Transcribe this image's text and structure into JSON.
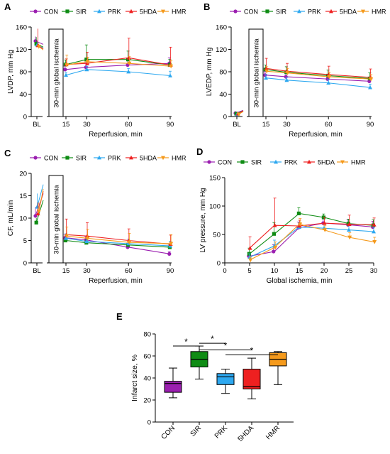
{
  "colors": {
    "CON": "#9b1fb0",
    "SIR": "#0f8c14",
    "PRK": "#2da8f0",
    "5HDA": "#ee2020",
    "HMR": "#f59a1c"
  },
  "groups": [
    "CON",
    "SIR",
    "PRK",
    "5HDA",
    "HMR"
  ],
  "ischemia_label": "30-min global ischemia",
  "chart_data": [
    {
      "panel": "A",
      "type": "line",
      "ylabel": "LVDP, mm Hg",
      "xlabel": "Reperfusion, min",
      "ylim": [
        0,
        160
      ],
      "yticks": [
        0,
        40,
        80,
        120,
        160
      ],
      "xtick_labels": [
        "BL",
        "15",
        "30",
        "60",
        "90"
      ],
      "x": [
        15,
        30,
        60,
        90
      ],
      "legend": "top",
      "series": [
        {
          "name": "CON",
          "bl": 135,
          "bl_err": 8,
          "values": [
            84,
            88,
            92,
            95
          ],
          "errors": [
            6,
            8,
            10,
            10
          ]
        },
        {
          "name": "SIR",
          "bl": 130,
          "bl_err": 12,
          "values": [
            93,
            102,
            102,
            92
          ],
          "errors": [
            8,
            26,
            15,
            10
          ]
        },
        {
          "name": "PRK",
          "bl": 128,
          "bl_err": 5,
          "values": [
            74,
            84,
            80,
            73
          ],
          "errors": [
            5,
            6,
            6,
            8
          ]
        },
        {
          "name": "5HDA",
          "bl": 127,
          "bl_err": 30,
          "values": [
            93,
            95,
            105,
            92
          ],
          "errors": [
            10,
            20,
            35,
            32
          ]
        },
        {
          "name": "HMR",
          "bl": 125,
          "bl_err": 5,
          "values": [
            92,
            98,
            95,
            90
          ],
          "errors": [
            18,
            8,
            12,
            10
          ]
        }
      ]
    },
    {
      "panel": "B",
      "type": "line",
      "ylabel": "LVEDP, mm Hg",
      "xlabel": "Reperfusion, min",
      "ylim": [
        0,
        160
      ],
      "yticks": [
        0,
        40,
        80,
        120,
        160
      ],
      "xtick_labels": [
        "BL",
        "15",
        "30",
        "60",
        "90"
      ],
      "x": [
        15,
        30,
        60,
        90
      ],
      "legend": "top",
      "series": [
        {
          "name": "CON",
          "bl": 6,
          "bl_err": 2,
          "values": [
            74,
            71,
            67,
            63
          ],
          "errors": [
            6,
            6,
            6,
            6
          ]
        },
        {
          "name": "SIR",
          "bl": 5,
          "bl_err": 2,
          "values": [
            84,
            79,
            73,
            68
          ],
          "errors": [
            8,
            10,
            10,
            10
          ]
        },
        {
          "name": "PRK",
          "bl": 4,
          "bl_err": 2,
          "values": [
            69,
            65,
            60,
            52
          ],
          "errors": [
            6,
            5,
            6,
            6
          ]
        },
        {
          "name": "5HDA",
          "bl": 5,
          "bl_err": 2,
          "values": [
            86,
            81,
            75,
            70
          ],
          "errors": [
            18,
            14,
            15,
            15
          ]
        },
        {
          "name": "HMR",
          "bl": 4,
          "bl_err": 2,
          "values": [
            81,
            78,
            71,
            67
          ],
          "errors": [
            8,
            8,
            8,
            8
          ]
        }
      ]
    },
    {
      "panel": "C",
      "type": "line",
      "ylabel": "CF, mL/min",
      "xlabel": "Reperfusion, min",
      "ylim": [
        0,
        20
      ],
      "yticks": [
        0,
        5,
        10,
        15,
        20
      ],
      "xtick_labels": [
        "BL",
        "15",
        "30",
        "60",
        "90"
      ],
      "x": [
        15,
        30,
        60,
        90
      ],
      "legend": "top",
      "series": [
        {
          "name": "CON",
          "bl": 10.5,
          "bl_err": 2,
          "values": [
            5.6,
            5.1,
            3.5,
            2.0
          ],
          "errors": [
            0.8,
            0.8,
            0.6,
            0.5
          ]
        },
        {
          "name": "SIR",
          "bl": 9.0,
          "bl_err": 1,
          "values": [
            5.0,
            4.5,
            4.0,
            3.5
          ],
          "errors": [
            0.6,
            0.6,
            0.6,
            0.6
          ]
        },
        {
          "name": "PRK",
          "bl": 12.5,
          "bl_err": 3,
          "values": [
            5.5,
            4.8,
            4.3,
            3.8
          ],
          "errors": [
            1,
            1,
            1,
            1
          ]
        },
        {
          "name": "5HDA",
          "bl": 11.0,
          "bl_err": 2.5,
          "values": [
            6.3,
            6.0,
            5.0,
            4.2
          ],
          "errors": [
            3.5,
            3,
            2.6,
            2
          ]
        },
        {
          "name": "HMR",
          "bl": 11.5,
          "bl_err": 2,
          "values": [
            6.0,
            5.5,
            4.6,
            4.3
          ],
          "errors": [
            2,
            2,
            2,
            2
          ]
        }
      ]
    },
    {
      "panel": "D",
      "type": "line",
      "ylabel": "LV pressure, mm Hg",
      "xlabel": "Global ischemia, min",
      "ylim": [
        0,
        150
      ],
      "yticks": [
        0,
        50,
        100,
        150
      ],
      "xlim": [
        0,
        30
      ],
      "xticks": [
        0,
        5,
        10,
        15,
        20,
        25,
        30
      ],
      "x": [
        5,
        10,
        15,
        20,
        25,
        30
      ],
      "legend": "top",
      "series": [
        {
          "name": "CON",
          "values": [
            12,
            20,
            62,
            70,
            67,
            63
          ],
          "errors": [
            6,
            12,
            10,
            10,
            10,
            10
          ]
        },
        {
          "name": "SIR",
          "values": [
            16,
            51,
            87,
            80,
            69,
            66
          ],
          "errors": [
            10,
            20,
            10,
            6,
            8,
            10
          ]
        },
        {
          "name": "PRK",
          "values": [
            10,
            30,
            63,
            61,
            58,
            55
          ],
          "errors": [
            6,
            10,
            8,
            8,
            8,
            8
          ]
        },
        {
          "name": "5HDA",
          "values": [
            26,
            66,
            65,
            70,
            68,
            67
          ],
          "errors": [
            20,
            48,
            10,
            10,
            16,
            12
          ]
        },
        {
          "name": "HMR",
          "values": [
            5,
            27,
            68,
            58,
            45,
            37
          ],
          "errors": [
            5,
            10,
            10,
            8,
            8,
            8
          ]
        }
      ]
    },
    {
      "panel": "E",
      "type": "box",
      "ylabel": "Infarct size, %",
      "ylim": [
        0,
        80
      ],
      "yticks": [
        0,
        20,
        40,
        60,
        80
      ],
      "categories": [
        "CON",
        "SIR",
        "PRK",
        "5HDA",
        "HMR"
      ],
      "boxes": [
        {
          "name": "CON",
          "min": 22,
          "q1": 27,
          "median": 35,
          "q3": 37,
          "max": 49
        },
        {
          "name": "SIR",
          "min": 39,
          "q1": 50,
          "median": 57,
          "q3": 64,
          "max": 69
        },
        {
          "name": "PRK",
          "min": 26,
          "q1": 34,
          "median": 41,
          "q3": 44,
          "max": 48
        },
        {
          "name": "5HDA",
          "min": 21,
          "q1": 30,
          "median": 32,
          "q3": 48,
          "max": 58
        },
        {
          "name": "HMR",
          "min": 34,
          "q1": 51,
          "median": 57,
          "q3": 63,
          "max": 64
        }
      ],
      "significance": [
        {
          "from": "CON",
          "to": "SIR",
          "label": "*"
        },
        {
          "from": "SIR",
          "to": "PRK",
          "label": "*"
        },
        {
          "from": "SIR",
          "to": "5HDA",
          "label": "*"
        },
        {
          "from": "PRK",
          "to": "HMR",
          "label": "*"
        }
      ]
    }
  ]
}
